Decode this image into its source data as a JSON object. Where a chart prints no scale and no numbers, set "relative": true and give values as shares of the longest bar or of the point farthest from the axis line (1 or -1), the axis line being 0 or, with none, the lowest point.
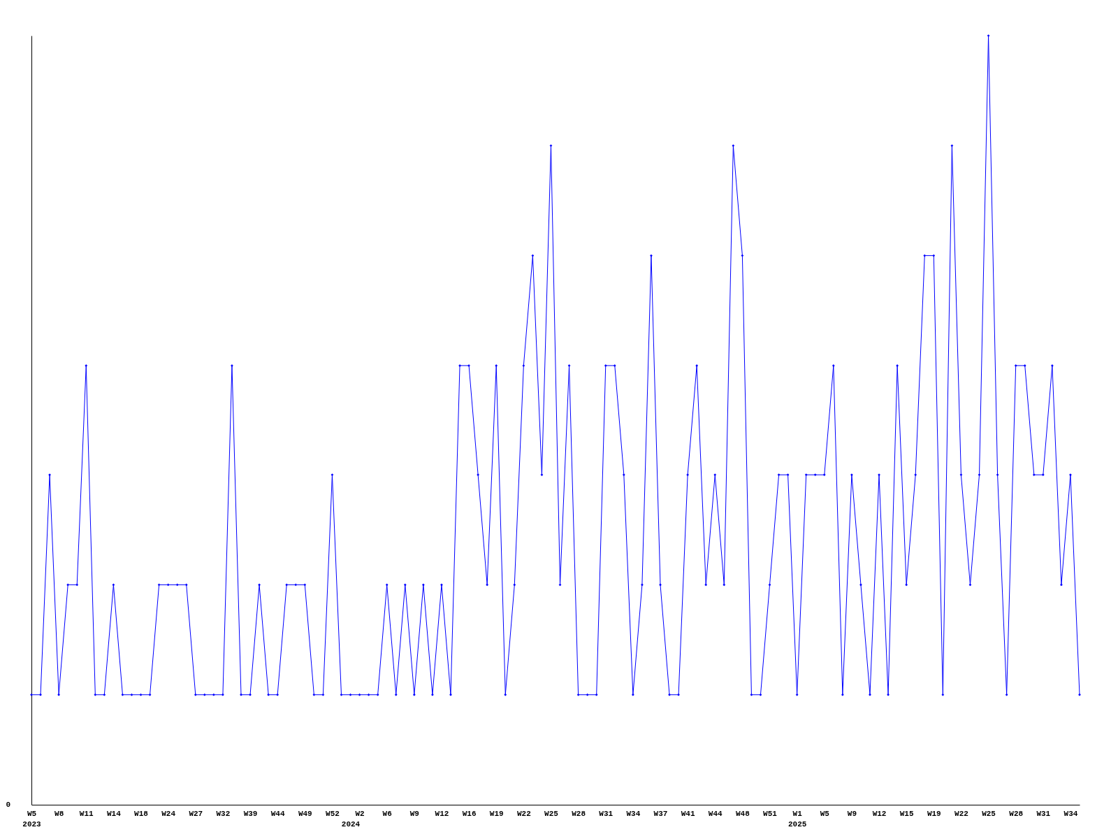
{
  "chart_data": {
    "type": "line",
    "relative": true,
    "marker": "diamond",
    "grid": false,
    "categories": [
      "W5\n2023",
      null,
      null,
      "W8",
      null,
      null,
      "W11",
      null,
      null,
      "W14",
      null,
      null,
      "W18",
      null,
      null,
      "W24",
      null,
      null,
      "W27",
      null,
      null,
      "W32",
      null,
      null,
      "W39",
      null,
      null,
      "W44",
      null,
      null,
      "W49",
      null,
      null,
      "W52",
      null,
      "\n2024",
      "W2",
      null,
      null,
      "W6",
      null,
      null,
      "W9",
      null,
      null,
      "W12",
      null,
      null,
      "W16",
      null,
      null,
      "W19",
      null,
      null,
      "W22",
      null,
      null,
      "W25",
      null,
      null,
      "W28",
      null,
      null,
      "W31",
      null,
      null,
      "W34",
      null,
      null,
      "W37",
      null,
      null,
      "W41",
      null,
      null,
      "W44",
      null,
      null,
      "W48",
      null,
      null,
      "W51",
      null,
      null,
      "W1\n2025",
      null,
      null,
      "W5",
      null,
      null,
      "W9",
      null,
      null,
      "W12",
      null,
      null,
      "W15",
      null,
      null,
      "W19",
      null,
      null,
      "W22",
      null,
      null,
      "W25",
      null,
      null,
      "W28",
      null,
      null,
      "W31",
      null,
      null,
      "W34",
      null
    ],
    "series": [
      {
        "color": "#0000ff",
        "values": [
          0.143,
          0.143,
          0.429,
          0.143,
          0.286,
          0.286,
          0.571,
          0.143,
          0.143,
          0.286,
          0.143,
          0.143,
          0.143,
          0.143,
          0.286,
          0.286,
          0.286,
          0.286,
          0.143,
          0.143,
          0.143,
          0.143,
          0.571,
          0.143,
          0.143,
          0.286,
          0.143,
          0.143,
          0.286,
          0.286,
          0.286,
          0.143,
          0.143,
          0.429,
          0.143,
          0.143,
          0.143,
          0.143,
          0.143,
          0.286,
          0.143,
          0.286,
          0.143,
          0.286,
          0.143,
          0.286,
          0.143,
          0.571,
          0.571,
          0.429,
          0.286,
          0.571,
          0.143,
          0.286,
          0.571,
          0.714,
          0.429,
          0.857,
          0.286,
          0.571,
          0.143,
          0.143,
          0.143,
          0.571,
          0.571,
          0.429,
          0.143,
          0.286,
          0.714,
          0.286,
          0.143,
          0.143,
          0.429,
          0.571,
          0.286,
          0.429,
          0.286,
          0.857,
          0.714,
          0.143,
          0.143,
          0.286,
          0.429,
          0.429,
          0.143,
          0.429,
          0.429,
          0.429,
          0.571,
          0.143,
          0.429,
          0.286,
          0.143,
          0.429,
          0.143,
          0.571,
          0.286,
          0.429,
          0.714,
          0.714,
          0.143,
          0.857,
          0.429,
          0.286,
          0.429,
          1,
          0.429,
          0.143,
          0.571,
          0.571,
          0.429,
          0.429,
          0.571,
          0.286,
          0.429,
          0.143
        ]
      }
    ],
    "annotations": [
      "0"
    ]
  }
}
